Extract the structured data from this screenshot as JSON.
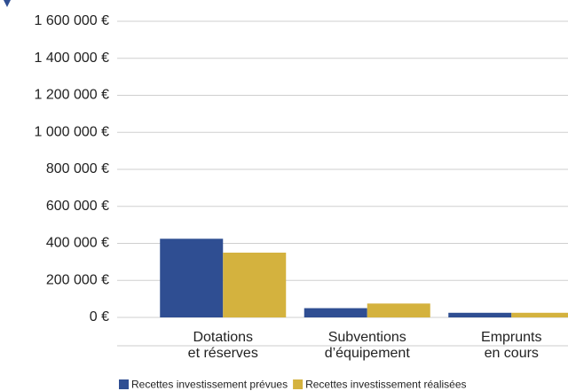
{
  "chart_data": {
    "type": "bar",
    "categories": [
      [
        "Dotations",
        "et réserves"
      ],
      [
        "Subventions",
        "d’équipement"
      ],
      [
        "Emprunts",
        "en cours"
      ]
    ],
    "series": [
      {
        "name": "Recettes investissement prévues",
        "color": "#2f4e92",
        "values": [
          425000,
          50000,
          25000
        ]
      },
      {
        "name": "Recettes investissement réalisées",
        "color": "#d4b23e",
        "values": [
          350000,
          75000,
          25000
        ]
      }
    ],
    "ylim": [
      0,
      1600000
    ],
    "yticks": [
      {
        "value": 0,
        "label": "0 €"
      },
      {
        "value": 200000,
        "label": "200 000 €"
      },
      {
        "value": 400000,
        "label": "400 000 €"
      },
      {
        "value": 600000,
        "label": "600 000 €"
      },
      {
        "value": 800000,
        "label": "800 000 €"
      },
      {
        "value": 1000000,
        "label": "1 000 000 €"
      },
      {
        "value": 1200000,
        "label": "1 200 000 €"
      },
      {
        "value": 1400000,
        "label": "1 400 000 €"
      },
      {
        "value": 1600000,
        "label": "1 600 000 €"
      }
    ],
    "grid": true,
    "legend": "bottom"
  }
}
